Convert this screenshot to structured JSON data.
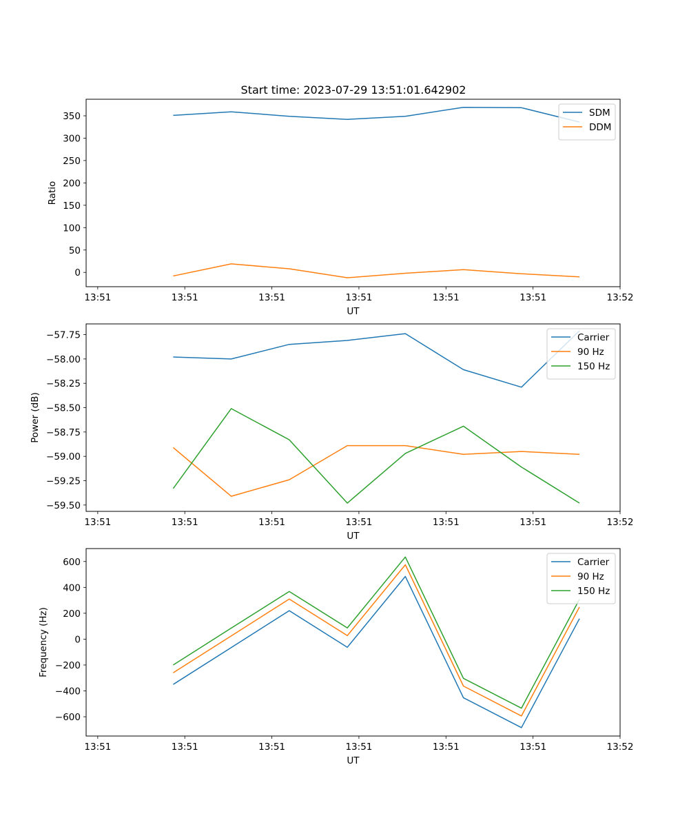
{
  "figure": {
    "title": "Start time: 2023-07-29 13:51:01.642902"
  },
  "chart_data": [
    {
      "type": "line",
      "title": "Start time: 2023-07-29 13:51:01.642902",
      "xlabel": "UT",
      "ylabel": "Ratio",
      "x": [
        0.75,
        1.25,
        1.75,
        2.25,
        2.75,
        3.25,
        3.75,
        4.25
      ],
      "xlim": [
        0,
        4.6
      ],
      "x_ticks": [
        0.1,
        0.85,
        1.6,
        2.35,
        3.1,
        3.85,
        4.6
      ],
      "x_tick_labels": [
        "13:51",
        "13:51",
        "13:51",
        "13:51",
        "13:51",
        "13:51",
        "13:52"
      ],
      "ylim": [
        -32,
        387
      ],
      "y_ticks": [
        0,
        50,
        100,
        150,
        200,
        250,
        300,
        350
      ],
      "y_tick_labels": [
        "0",
        "50",
        "100",
        "150",
        "200",
        "250",
        "300",
        "350"
      ],
      "legend_position": "top-right",
      "series": [
        {
          "name": "SDM",
          "color": "#1f77b4",
          "values": [
            351,
            359,
            349,
            342,
            349,
            369,
            368,
            336
          ]
        },
        {
          "name": "DDM",
          "color": "#ff7f0e",
          "values": [
            -8,
            19,
            8,
            -12,
            -2,
            6,
            -3,
            -10
          ]
        }
      ]
    },
    {
      "type": "line",
      "title": "",
      "xlabel": "UT",
      "ylabel": "Power (dB)",
      "x": [
        0.75,
        1.25,
        1.75,
        2.25,
        2.75,
        3.25,
        3.75,
        4.25
      ],
      "xlim": [
        0,
        4.6
      ],
      "x_ticks": [
        0.1,
        0.85,
        1.6,
        2.35,
        3.1,
        3.85,
        4.6
      ],
      "x_tick_labels": [
        "13:51",
        "13:51",
        "13:51",
        "13:51",
        "13:51",
        "13:51",
        "13:52"
      ],
      "ylim": [
        -59.565,
        -57.64
      ],
      "y_ticks": [
        -59.5,
        -59.25,
        -59.0,
        -58.75,
        -58.5,
        -58.25,
        -58.0,
        -57.75
      ],
      "y_tick_labels": [
        "−59.50",
        "−59.25",
        "−59.00",
        "−58.75",
        "−58.50",
        "−58.25",
        "−58.00",
        "−57.75"
      ],
      "legend_position": "top-right",
      "series": [
        {
          "name": "Carrier",
          "color": "#1f77b4",
          "values": [
            -57.98,
            -58.0,
            -57.85,
            -57.81,
            -57.74,
            -58.11,
            -58.29,
            -57.71
          ]
        },
        {
          "name": "90 Hz",
          "color": "#ff7f0e",
          "values": [
            -58.91,
            -59.41,
            -59.24,
            -58.89,
            -58.89,
            -58.98,
            -58.95,
            -58.98
          ]
        },
        {
          "name": "150 Hz",
          "color": "#2ca02c",
          "values": [
            -59.33,
            -58.51,
            -58.83,
            -59.48,
            -58.97,
            -58.69,
            -59.11,
            -59.48
          ]
        }
      ]
    },
    {
      "type": "line",
      "title": "",
      "xlabel": "UT",
      "ylabel": "Frequency (Hz)",
      "x": [
        0.75,
        1.25,
        1.75,
        2.25,
        2.75,
        3.25,
        3.75,
        4.25
      ],
      "xlim": [
        0,
        4.6
      ],
      "x_ticks": [
        0.1,
        0.85,
        1.6,
        2.35,
        3.1,
        3.85,
        4.6
      ],
      "x_tick_labels": [
        "13:51",
        "13:51",
        "13:51",
        "13:51",
        "13:51",
        "13:51",
        "13:52"
      ],
      "ylim": [
        -749,
        700
      ],
      "y_ticks": [
        -600,
        -400,
        -200,
        0,
        200,
        400,
        600
      ],
      "y_tick_labels": [
        "−600",
        "−400",
        "−200",
        "0",
        "200",
        "400",
        "600"
      ],
      "legend_position": "top-right",
      "series": [
        {
          "name": "Carrier",
          "color": "#1f77b4",
          "values": [
            -350,
            -65,
            220,
            -63,
            485,
            -453,
            -684,
            158
          ]
        },
        {
          "name": "90 Hz",
          "color": "#ff7f0e",
          "values": [
            -260,
            25,
            310,
            27,
            575,
            -363,
            -594,
            248
          ]
        },
        {
          "name": "150 Hz",
          "color": "#2ca02c",
          "values": [
            -200,
            85,
            368,
            87,
            635,
            -303,
            -534,
            308
          ]
        }
      ]
    }
  ]
}
